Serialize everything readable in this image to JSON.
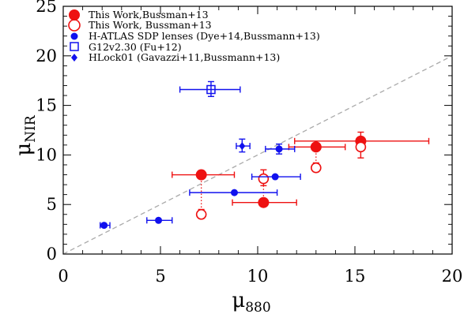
{
  "chart_data": {
    "type": "scatter",
    "xlabel": "μ",
    "xlabel_sub": "880",
    "ylabel": "μ",
    "ylabel_sub": "NIR",
    "xlim": [
      0,
      20
    ],
    "ylim": [
      0,
      25
    ],
    "xticks": [
      0,
      5,
      10,
      15,
      20
    ],
    "yticks": [
      0,
      5,
      10,
      15,
      20,
      25
    ],
    "grid": false,
    "legend_position": "top-left",
    "one_to_one_line": true,
    "series": [
      {
        "name": "This Work,Bussman+13",
        "marker": "filled-circle",
        "color": "#ee1111",
        "points": [
          {
            "x": 7.1,
            "y": 8.0,
            "xlo": 5.6,
            "xhi": 8.8,
            "ylo": 8.0,
            "yhi": 8.0
          },
          {
            "x": 10.3,
            "y": 5.2,
            "xlo": 8.7,
            "xhi": 12.0,
            "ylo": 5.2,
            "yhi": 5.2
          },
          {
            "x": 13.0,
            "y": 10.8,
            "xlo": 11.6,
            "xhi": 14.5,
            "ylo": 10.8,
            "yhi": 10.8
          },
          {
            "x": 15.3,
            "y": 11.4,
            "xlo": 11.9,
            "xhi": 18.8,
            "ylo": 10.6,
            "yhi": 12.3
          }
        ]
      },
      {
        "name": "This Work, Bussman+13",
        "marker": "open-circle",
        "color": "#ee1111",
        "points": [
          {
            "x": 7.1,
            "y": 4.0,
            "xlo": 7.1,
            "xhi": 7.1,
            "ylo": 3.6,
            "yhi": 4.5
          },
          {
            "x": 10.3,
            "y": 7.6,
            "xlo": 10.3,
            "xhi": 10.3,
            "ylo": 6.9,
            "yhi": 8.5
          },
          {
            "x": 13.0,
            "y": 8.7,
            "xlo": 13.0,
            "xhi": 13.0,
            "ylo": 8.3,
            "yhi": 9.2
          },
          {
            "x": 15.3,
            "y": 10.8,
            "xlo": 15.3,
            "xhi": 15.3,
            "ylo": 9.7,
            "yhi": 11.8
          }
        ]
      },
      {
        "name": "H-ATLAS SDP lenses (Dye+14,Bussmann+13)",
        "marker": "filled-circle-small",
        "color": "#1111ee",
        "points": [
          {
            "x": 2.1,
            "y": 2.9,
            "xlo": 1.9,
            "xhi": 2.4,
            "ylo": 2.9,
            "yhi": 2.9
          },
          {
            "x": 4.9,
            "y": 3.4,
            "xlo": 4.3,
            "xhi": 5.6,
            "ylo": 3.4,
            "yhi": 3.4
          },
          {
            "x": 8.8,
            "y": 6.2,
            "xlo": 6.5,
            "xhi": 11.0,
            "ylo": 6.2,
            "yhi": 6.2
          },
          {
            "x": 10.9,
            "y": 7.8,
            "xlo": 9.7,
            "xhi": 12.2,
            "ylo": 7.8,
            "yhi": 7.8
          },
          {
            "x": 11.1,
            "y": 10.6,
            "xlo": 10.4,
            "xhi": 11.9,
            "ylo": 10.1,
            "yhi": 11.1
          }
        ]
      },
      {
        "name": "G12v2.30 (Fu+12)",
        "marker": "open-square",
        "color": "#1111ee",
        "points": [
          {
            "x": 7.6,
            "y": 16.6,
            "xlo": 6.0,
            "xhi": 9.1,
            "ylo": 15.9,
            "yhi": 17.4
          }
        ]
      },
      {
        "name": "HLock01 (Gavazzi+11,Bussmann+13)",
        "marker": "filled-diamond",
        "color": "#1111ee",
        "points": [
          {
            "x": 9.2,
            "y": 10.9,
            "xlo": 8.9,
            "xhi": 9.6,
            "ylo": 10.3,
            "yhi": 11.6
          }
        ]
      }
    ],
    "connectors": [
      {
        "x": 7.1,
        "y1": 8.0,
        "y2": 4.0
      },
      {
        "x": 10.3,
        "y1": 5.2,
        "y2": 7.6
      },
      {
        "x": 13.0,
        "y1": 10.8,
        "y2": 8.7
      },
      {
        "x": 15.3,
        "y1": 11.4,
        "y2": 10.8
      }
    ]
  }
}
